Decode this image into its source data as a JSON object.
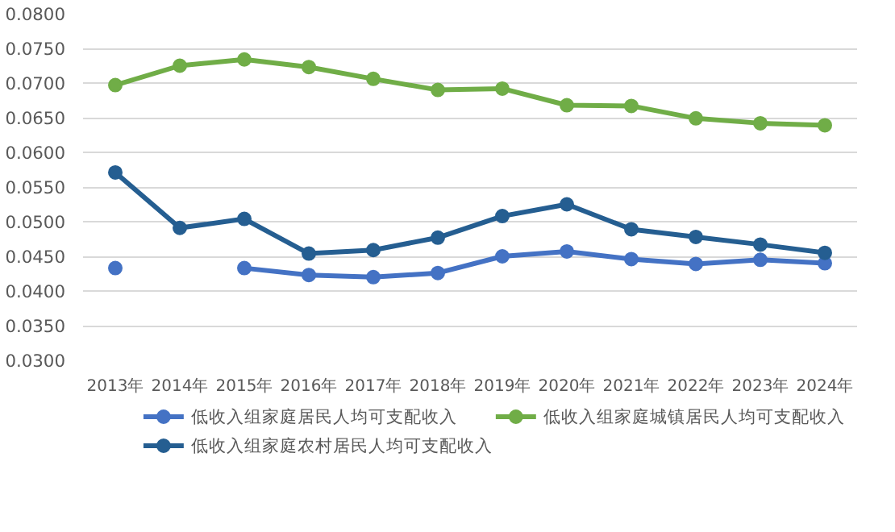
{
  "chart_data": {
    "type": "line",
    "categories": [
      "2013年",
      "2014年",
      "2015年",
      "2016年",
      "2017年",
      "2018年",
      "2019年",
      "2020年",
      "2021年",
      "2022年",
      "2023年",
      "2024年"
    ],
    "series": [
      {
        "name": "低收入组家庭居民人均可支配收入",
        "color": "#4472c4",
        "values": [
          0.0433,
          null,
          0.0433,
          0.0423,
          0.042,
          0.0426,
          0.045,
          0.0457,
          0.0446,
          0.0439,
          0.0445,
          0.044
        ]
      },
      {
        "name": "低收入组家庭城镇居民人均可支配收入",
        "color": "#70ad47",
        "values": [
          0.0697,
          0.0725,
          0.0734,
          0.0723,
          0.0706,
          0.069,
          0.0692,
          0.0668,
          0.0667,
          0.0649,
          0.0642,
          0.0639
        ]
      },
      {
        "name": "低收入组家庭农村居民人均可支配收入",
        "color": "#255e91",
        "values": [
          0.0571,
          0.0491,
          0.0504,
          0.0454,
          0.0459,
          0.0477,
          0.0508,
          0.0525,
          0.0489,
          0.0478,
          0.0467,
          0.0455
        ]
      }
    ],
    "ylim": [
      0.03,
      0.08
    ],
    "yticks": [
      {
        "value": 0.03,
        "label": "0.0300"
      },
      {
        "value": 0.035,
        "label": "0.0350"
      },
      {
        "value": 0.04,
        "label": "0.0400"
      },
      {
        "value": 0.045,
        "label": "0.0450"
      },
      {
        "value": 0.05,
        "label": "0.0500"
      },
      {
        "value": 0.055,
        "label": "0.0550"
      },
      {
        "value": 0.06,
        "label": "0.0600"
      },
      {
        "value": 0.065,
        "label": "0.0650"
      },
      {
        "value": 0.07,
        "label": "0.0700"
      },
      {
        "value": 0.075,
        "label": "0.0750"
      },
      {
        "value": 0.08,
        "label": "0.0800"
      }
    ],
    "grid": "y",
    "legend": "bottom",
    "marker": "circle",
    "line_style": "solid"
  }
}
